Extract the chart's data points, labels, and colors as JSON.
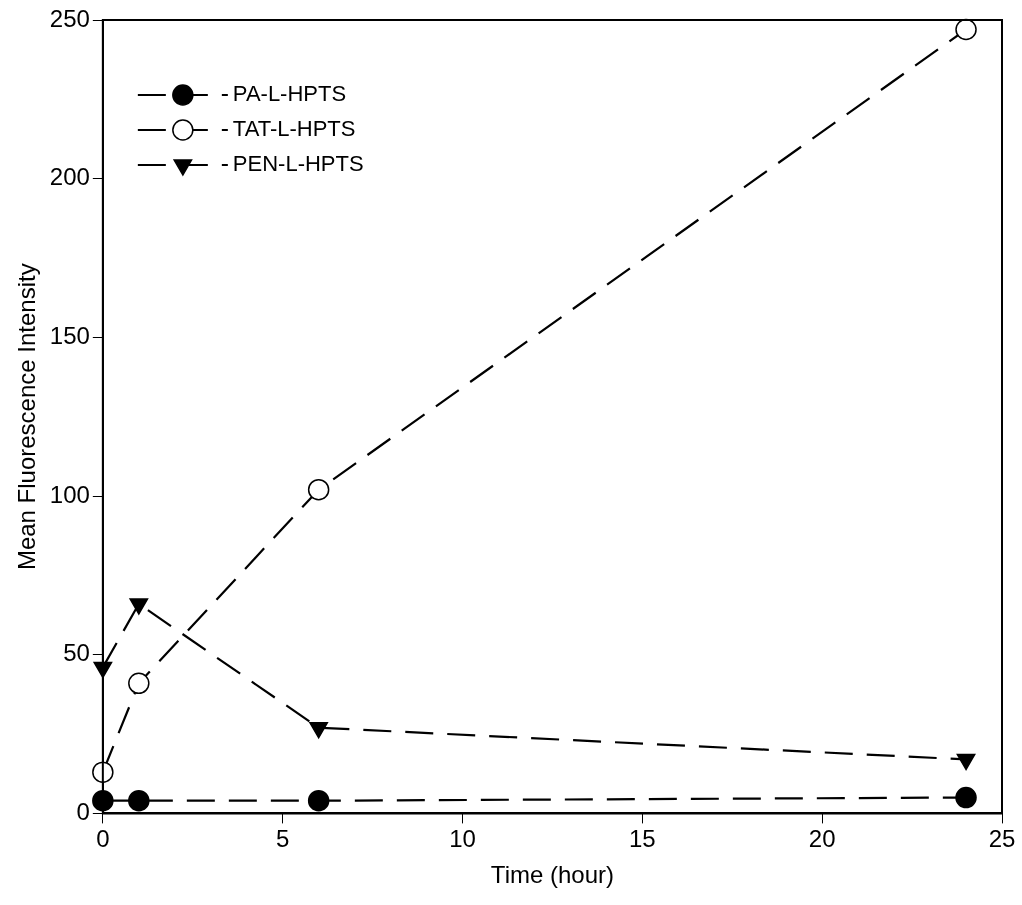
{
  "chart_data": {
    "type": "line",
    "xlabel": "Time (hour)",
    "ylabel": "Mean Fluorescence Intensity",
    "x": [
      0,
      1,
      6,
      24
    ],
    "series": [
      {
        "name": "PA-L-HPTS",
        "color": "#000000",
        "marker": "circle",
        "values": [
          4,
          4,
          4,
          5
        ]
      },
      {
        "name": "TAT-L-HPTS",
        "color": "#000000",
        "marker": "circle_open",
        "values": [
          13,
          41,
          102,
          247
        ]
      },
      {
        "name": "PEN-L-HPTS",
        "color": "#000000",
        "marker": "triangle_down",
        "values": [
          46,
          66,
          27,
          17
        ]
      }
    ],
    "xlim": [
      0,
      25
    ],
    "xticks": [
      0,
      5,
      10,
      15,
      20,
      25
    ],
    "ylim": [
      0,
      250
    ],
    "yticks": [
      0,
      50,
      100,
      150,
      200,
      250
    ],
    "grid": false,
    "legend": "top left",
    "line_style": "dashed"
  }
}
